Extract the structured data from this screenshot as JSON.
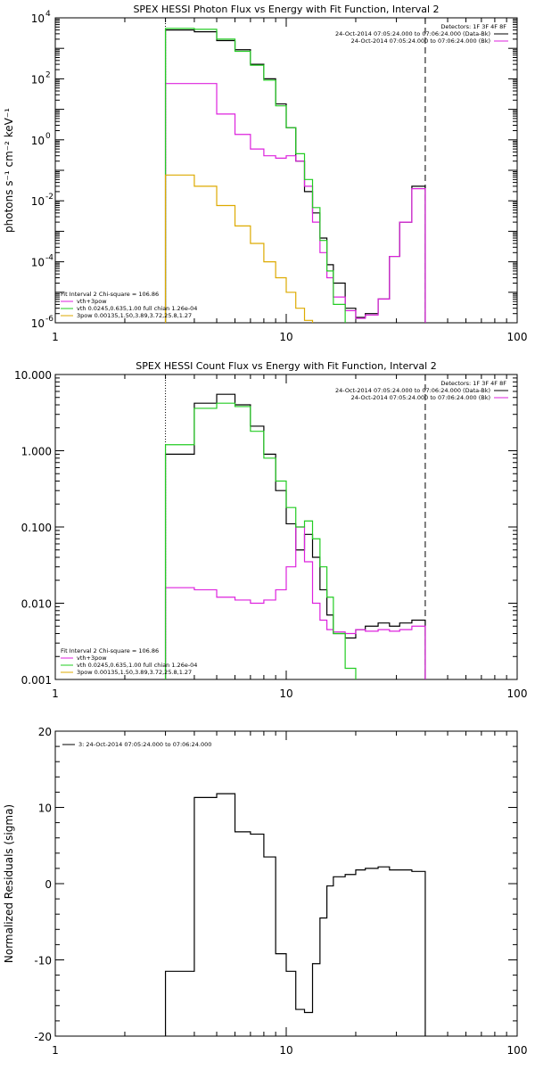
{
  "chart_data": [
    {
      "type": "line",
      "title": "SPEX HESSI Photon Flux vs Energy with Fit Function, Interval 2",
      "xlabel": "",
      "ylabel": "photons s⁻¹ cm⁻² keV⁻¹",
      "xscale": "log",
      "yscale": "log",
      "xlim": [
        1,
        100
      ],
      "ylim": [
        1e-06,
        10000
      ],
      "xticks": [
        {
          "v": 1,
          "label": "1"
        },
        {
          "v": 10,
          "label": "10"
        },
        {
          "v": 100,
          "label": "100"
        }
      ],
      "yticks": [
        {
          "v": 10000,
          "label": "10",
          "exp": "4"
        },
        {
          "v": 100,
          "label": "10",
          "exp": "2"
        },
        {
          "v": 1,
          "label": "10",
          "exp": "0"
        },
        {
          "v": 0.01,
          "label": "10",
          "exp": "-2"
        },
        {
          "v": 0.0001,
          "label": "10",
          "exp": "-4"
        },
        {
          "v": 1e-06,
          "label": "10",
          "exp": "-6"
        }
      ],
      "edges": [
        3,
        4,
        5,
        6,
        7,
        8,
        9,
        10,
        11,
        12,
        13,
        14,
        15,
        16,
        18,
        20,
        22,
        25,
        28,
        31,
        35,
        40
      ],
      "series": [
        {
          "name": "data",
          "color": "#000000",
          "values": [
            4000,
            3500,
            1800,
            900,
            300,
            100,
            15,
            2.5,
            0.2,
            0.02,
            0.004,
            0.0006,
            8e-05,
            2e-05,
            3e-06,
            1.5e-06,
            2e-06,
            6e-06,
            0.00015,
            0.002,
            0.03
          ]
        },
        {
          "name": "vth+3pow",
          "color": "#dd22dd",
          "values": [
            70,
            70,
            7,
            1.5,
            0.5,
            0.3,
            0.25,
            0.3,
            0.2,
            0.03,
            0.002,
            0.0002,
            3e-05,
            7e-06,
            2.5e-06,
            1.4e-06,
            1.8e-06,
            6e-06,
            0.00015,
            0.002,
            0.025
          ]
        },
        {
          "name": "vth",
          "color": "#22cc22",
          "values": [
            4500,
            4200,
            2000,
            800,
            280,
            90,
            13,
            2.5,
            0.35,
            0.05,
            0.006,
            0.0005,
            5e-05,
            4e-06,
            3e-07
          ]
        },
        {
          "name": "3pow",
          "color": "#ddaa00",
          "values": [
            0.07,
            0.03,
            0.007,
            0.0015,
            0.0004,
            0.0001,
            3e-05,
            1e-05,
            3e-06,
            1.2e-06,
            4e-07
          ]
        }
      ],
      "vlines": [
        {
          "x": 3,
          "style": "dotted",
          "color": "#000000"
        },
        {
          "x": 40,
          "style": "dashed",
          "color": "#000000"
        }
      ],
      "legend_top_right": [
        {
          "text": "Detectors: 1F 3F 4F 8F",
          "color": "#000000",
          "line": false
        },
        {
          "text": "24-Oct-2014 07:05:24.000 to 07:06:24.000 (Data-Bk)",
          "color": "#000000",
          "line": true
        },
        {
          "text": "24-Oct-2014 07:05:24.000 to 07:06:24.000 (Bk)",
          "color": "#dd22dd",
          "line": true
        }
      ],
      "legend_bottom_left": [
        {
          "text": "Fit Interval 2   Chi-square = 106.86",
          "color": "#000000",
          "line": false
        },
        {
          "text": "vth+3pow",
          "color": "#dd22dd",
          "line": true
        },
        {
          "text": "vth 0.0245,0.635,1.00  full chian 1.26e-04",
          "color": "#22cc22",
          "line": true
        },
        {
          "text": "3pow 0.00135,1.50,3.89,3.72,25.8,1.27",
          "color": "#ddaa00",
          "line": true
        }
      ]
    },
    {
      "type": "line",
      "title": "SPEX HESSI Count Flux vs Energy with Fit Function, Interval 2",
      "xlabel": "",
      "ylabel": "",
      "xscale": "log",
      "yscale": "log",
      "xlim": [
        1,
        100
      ],
      "ylim": [
        0.001,
        10
      ],
      "xticks": [
        {
          "v": 1,
          "label": "1"
        },
        {
          "v": 10,
          "label": "10"
        },
        {
          "v": 100,
          "label": "100"
        }
      ],
      "yticks": [
        {
          "v": 10,
          "label": "10.000"
        },
        {
          "v": 1,
          "label": "1.000"
        },
        {
          "v": 0.1,
          "label": "0.100"
        },
        {
          "v": 0.01,
          "label": "0.010"
        },
        {
          "v": 0.001,
          "label": "0.001"
        }
      ],
      "edges": [
        3,
        4,
        5,
        6,
        7,
        8,
        9,
        10,
        11,
        12,
        13,
        14,
        15,
        16,
        18,
        20,
        22,
        25,
        28,
        31,
        35,
        40
      ],
      "series": [
        {
          "name": "data",
          "color": "#000000",
          "values": [
            0.9,
            4.2,
            5.5,
            4.0,
            2.1,
            0.9,
            0.3,
            0.11,
            0.05,
            0.08,
            0.04,
            0.015,
            0.007,
            0.004,
            0.0035,
            0.0045,
            0.005,
            0.0055,
            0.005,
            0.0055,
            0.006
          ]
        },
        {
          "name": "vth+3pow",
          "color": "#dd22dd",
          "values": [
            0.016,
            0.015,
            0.012,
            0.011,
            0.01,
            0.011,
            0.015,
            0.03,
            0.1,
            0.035,
            0.01,
            0.006,
            0.0045,
            0.0042,
            0.004,
            0.0045,
            0.0043,
            0.0045,
            0.0043,
            0.0045,
            0.005
          ]
        },
        {
          "name": "vth",
          "color": "#22cc22",
          "values": [
            1.2,
            3.6,
            4.2,
            3.8,
            1.8,
            0.8,
            0.4,
            0.18,
            0.1,
            0.12,
            0.07,
            0.03,
            0.012,
            0.004,
            0.0014,
            0.0004
          ]
        }
      ],
      "vlines": [
        {
          "x": 3,
          "style": "dotted",
          "color": "#000000"
        },
        {
          "x": 40,
          "style": "dashed",
          "color": "#000000"
        }
      ],
      "legend_top_right": [
        {
          "text": "Detectors: 1F 3F 4F 8F",
          "color": "#000000",
          "line": false
        },
        {
          "text": "24-Oct-2014 07:05:24.000 to 07:06:24.000 (Data-Bk)",
          "color": "#000000",
          "line": true
        },
        {
          "text": "24-Oct-2014 07:05:24.000 to 07:06:24.000 (Bk)",
          "color": "#dd22dd",
          "line": true
        }
      ],
      "legend_bottom_left": [
        {
          "text": "Fit Interval 2   Chi-square = 106.86",
          "color": "#000000",
          "line": false
        },
        {
          "text": "vth+3pow",
          "color": "#dd22dd",
          "line": true
        },
        {
          "text": "vth 0.0245,0.635,1.00  full chian 1.26e-04",
          "color": "#22cc22",
          "line": true
        },
        {
          "text": "3pow 0.00135,1.50,3.89,3.72,25.8,1.27",
          "color": "#ddaa00",
          "line": true
        }
      ]
    },
    {
      "type": "line",
      "title": "",
      "xlabel": "",
      "ylabel": "Normalized Residuals (sigma)",
      "xscale": "log",
      "yscale": "linear",
      "xlim": [
        1,
        100
      ],
      "ylim": [
        -20,
        20
      ],
      "xticks": [
        {
          "v": 1,
          "label": "1"
        },
        {
          "v": 10,
          "label": "10"
        },
        {
          "v": 100,
          "label": "100"
        }
      ],
      "yticks": [
        {
          "v": 20,
          "label": "20"
        },
        {
          "v": 10,
          "label": "10"
        },
        {
          "v": 0,
          "label": "0"
        },
        {
          "v": -10,
          "label": "-10"
        },
        {
          "v": -20,
          "label": "-20"
        }
      ],
      "edges": [
        3,
        4,
        5,
        6,
        7,
        8,
        9,
        10,
        11,
        12,
        13,
        14,
        15,
        16,
        18,
        20,
        22,
        25,
        28,
        31,
        35,
        40
      ],
      "series": [
        {
          "name": "residuals",
          "color": "#000000",
          "values": [
            -11.5,
            11.3,
            11.8,
            6.8,
            6.5,
            3.5,
            -9.2,
            -11.5,
            -16.5,
            -16.9,
            -10.5,
            -4.5,
            -0.3,
            0.9,
            1.2,
            1.8,
            2.0,
            2.2,
            1.8,
            1.8,
            1.6
          ]
        }
      ],
      "residual_start": -20,
      "vlines": [],
      "legend_top_left": [
        {
          "text": "3: 24-Oct-2014 07:05:24.000 to 07:06:24.000",
          "color": "#000000",
          "line": true
        }
      ]
    }
  ]
}
